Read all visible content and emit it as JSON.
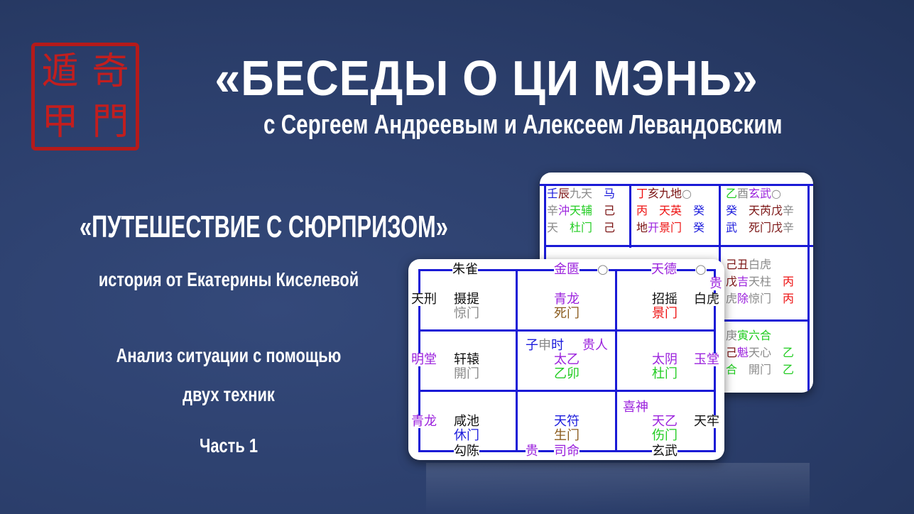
{
  "header": {
    "title": "«БЕСЕДЫ О ЦИ МЭНЬ»",
    "subtitle": "с Сергеем Андреевым и Алексеем Левандовским"
  },
  "logo": {
    "seal_text": [
      "遁",
      "甲",
      "奇",
      "門"
    ],
    "color": "#b51a1a"
  },
  "episode": {
    "title": "«ПУТЕШЕСТВИЕ С СЮРПРИЗОМ»",
    "author": "история от Екатерины Киселевой",
    "analysis_line1": "Анализ ситуации с помощью",
    "analysis_line2": "двух техник",
    "part": "Часть 1"
  },
  "colors": {
    "blue": "#1a1adc",
    "darkred": "#7a1212",
    "gray": "#8a8a8a",
    "green": "#22cc22",
    "purple": "#9b22dd",
    "red": "#ee1111",
    "black": "#111111",
    "brown": "#8a5a1c",
    "grid": "#1a1ad6"
  },
  "back_chart": {
    "items": [
      [
        [
          "壬",
          "blue"
        ],
        [
          "辰",
          "darkred"
        ],
        [
          "九天　",
          "gray"
        ],
        [
          "马",
          "blue"
        ]
      ],
      [
        [
          "辛",
          "gray"
        ],
        [
          "沖",
          "purple"
        ],
        [
          "天辅　",
          "green"
        ],
        [
          "己",
          "darkred"
        ]
      ],
      [
        [
          "天　",
          "gray"
        ],
        [
          "杜门　",
          "green"
        ],
        [
          "己",
          "darkred"
        ]
      ],
      [
        [
          "丁",
          "red"
        ],
        [
          "亥",
          "darkred"
        ],
        [
          "九地",
          "darkred"
        ],
        [
          "○",
          "gray"
        ]
      ],
      [
        [
          "丙　",
          "red"
        ],
        [
          "天英　",
          "red"
        ],
        [
          "癸",
          "blue"
        ]
      ],
      [
        [
          "地",
          "darkred"
        ],
        [
          "开",
          "purple"
        ],
        [
          "景门　",
          "red"
        ],
        [
          "癸",
          "blue"
        ]
      ],
      [
        [
          "乙",
          "green"
        ],
        [
          "酉",
          "gray"
        ],
        [
          "玄武",
          "purple"
        ],
        [
          "○",
          "gray"
        ]
      ],
      [
        [
          "癸　",
          "blue"
        ],
        [
          "天芮戊",
          "darkred"
        ],
        [
          "辛",
          "gray"
        ]
      ],
      [
        [
          "武　",
          "blue"
        ],
        [
          "死门戊",
          "darkred"
        ],
        [
          "辛",
          "gray"
        ]
      ],
      [
        [
          "己丑",
          "darkred"
        ],
        [
          "白虎",
          "gray"
        ]
      ],
      [
        [
          "戊",
          "darkred"
        ],
        [
          "吉",
          "purple"
        ],
        [
          "天柱　",
          "gray"
        ],
        [
          "丙",
          "red"
        ]
      ],
      [
        [
          "虎",
          "gray"
        ],
        [
          "除",
          "purple"
        ],
        [
          "惊门　",
          "gray"
        ],
        [
          "丙",
          "red"
        ]
      ],
      [
        [
          "庚",
          "gray"
        ],
        [
          "寅六合",
          "green"
        ]
      ],
      [
        [
          "己",
          "darkred"
        ],
        [
          "魁",
          "purple"
        ],
        [
          "天心　",
          "gray"
        ],
        [
          "乙",
          "green"
        ]
      ],
      [
        [
          "合　",
          "green"
        ],
        [
          "開门　",
          "gray"
        ],
        [
          "乙",
          "green"
        ]
      ]
    ]
  },
  "front_chart": {
    "items": [
      [
        [
          "朱雀",
          "black"
        ]
      ],
      [
        [
          "金匮",
          "purple"
        ]
      ],
      [
        [
          "○",
          "gray"
        ]
      ],
      [
        [
          "天德",
          "purple"
        ]
      ],
      [
        [
          "○",
          "gray"
        ]
      ],
      [
        [
          "贵",
          "purple"
        ]
      ],
      [
        [
          "天刑",
          "black"
        ]
      ],
      [
        [
          "摄提",
          "black"
        ]
      ],
      [
        [
          "惊门",
          "gray"
        ]
      ],
      [
        [
          "青龙",
          "purple"
        ]
      ],
      [
        [
          "死门",
          "brown"
        ]
      ],
      [
        [
          "招摇",
          "black"
        ]
      ],
      [
        [
          "景门",
          "red"
        ]
      ],
      [
        [
          "白虎",
          "black"
        ]
      ],
      [
        [
          "子",
          "blue"
        ],
        [
          "申",
          "gray"
        ],
        [
          "时",
          "blue"
        ]
      ],
      [
        [
          "贵人",
          "purple"
        ]
      ],
      [
        [
          "太乙",
          "purple"
        ]
      ],
      [
        [
          "乙卯",
          "green"
        ]
      ],
      [
        [
          "明堂",
          "purple"
        ]
      ],
      [
        [
          "轩辕",
          "black"
        ]
      ],
      [
        [
          "開门",
          "gray"
        ]
      ],
      [
        [
          "太阴",
          "purple"
        ]
      ],
      [
        [
          "杜门",
          "green"
        ]
      ],
      [
        [
          "玉堂",
          "purple"
        ]
      ],
      [
        [
          "喜神",
          "purple"
        ]
      ],
      [
        [
          "青龙",
          "purple"
        ]
      ],
      [
        [
          "咸池",
          "black"
        ]
      ],
      [
        [
          "休门",
          "blue"
        ]
      ],
      [
        [
          "勾陈",
          "black"
        ]
      ],
      [
        [
          "天符",
          "blue"
        ]
      ],
      [
        [
          "生门",
          "brown"
        ]
      ],
      [
        [
          "贵",
          "purple"
        ]
      ],
      [
        [
          "司命",
          "purple"
        ]
      ],
      [
        [
          "天乙",
          "purple"
        ]
      ],
      [
        [
          "伤门",
          "green"
        ]
      ],
      [
        [
          "天牢",
          "black"
        ]
      ],
      [
        [
          "玄武",
          "black"
        ]
      ]
    ]
  }
}
